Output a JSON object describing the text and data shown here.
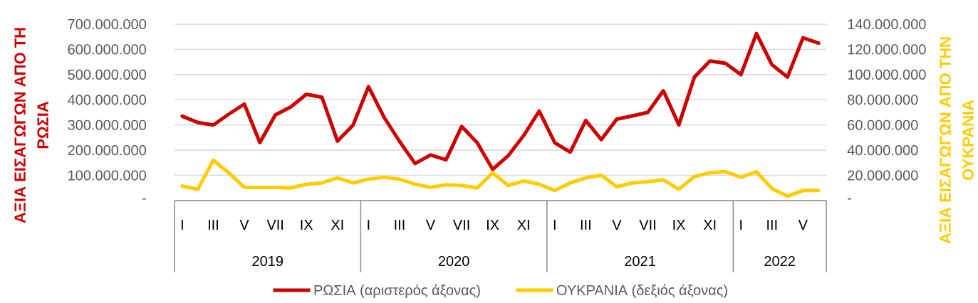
{
  "chart_data": {
    "type": "line",
    "categories": [
      "I",
      null,
      "III",
      null,
      "V",
      null,
      "VII",
      null,
      "IX",
      null,
      "XI",
      null,
      "I",
      null,
      "III",
      null,
      "V",
      null,
      "VII",
      null,
      "IX",
      null,
      "XI",
      null,
      "I",
      null,
      "III",
      null,
      "V",
      null,
      "VII",
      null,
      "IX",
      null,
      "XI",
      null,
      "I",
      null,
      "III",
      null,
      "V",
      null
    ],
    "annotations": [
      "2019",
      "2020",
      "2021",
      "2022"
    ],
    "ylabel": "ΑΞΙΑ ΕΙΣΑΓΩΓΩΝ ΑΠΟ ΤΗ ΡΩΣΙΑ",
    "y2label": "ΑΞΙΑ ΕΙΣΑΓΩΓΩΝ ΑΠΟ ΤΗΝ ΟΥΚΡΑΝΙΑ",
    "series": [
      {
        "name": "ΡΩΣΙΑ (αριστερός άξονας)",
        "color": "#cc0000",
        "values": [
          335000000,
          310000000,
          300000000,
          343000000,
          383000000,
          230000000,
          340000000,
          372000000,
          422000000,
          410000000,
          236000000,
          299000000,
          452000000,
          331000000,
          235000000,
          147000000,
          181000000,
          162000000,
          294000000,
          230000000,
          124000000,
          178000000,
          258000000,
          355000000,
          230000000,
          192000000,
          318000000,
          242000000,
          323000000,
          336000000,
          350000000,
          436000000,
          301000000,
          490000000,
          554000000,
          545000000,
          500000000,
          663000000,
          539000000,
          490000000,
          646000000,
          625000000
        ]
      },
      {
        "name": "ΟΥΚΡΑΝΙΑ (δεξιός άξονας)",
        "color": "#ffcc00",
        "axis": "y2",
        "values": [
          11500000,
          9000000,
          32000000,
          22000000,
          10500000,
          10500000,
          10500000,
          10000000,
          13000000,
          14000000,
          18000000,
          14000000,
          17000000,
          18500000,
          17000000,
          13000000,
          10500000,
          12500000,
          12000000,
          10000000,
          22000000,
          12000000,
          15500000,
          13000000,
          8000000,
          14000000,
          18000000,
          20000000,
          11000000,
          14000000,
          15000000,
          16500000,
          9000000,
          19000000,
          22000000,
          23000000,
          18500000,
          23000000,
          9500000,
          3500000,
          8000000,
          8000000
        ]
      }
    ],
    "ylim": [
      0,
      700000000
    ],
    "yticks": [
      {
        "value": 0,
        "label": "-"
      },
      {
        "value": 100000000,
        "label": "100.000.000"
      },
      {
        "value": 200000000,
        "label": "200.000.000"
      },
      {
        "value": 300000000,
        "label": "300.000.000"
      },
      {
        "value": 400000000,
        "label": "400.000.000"
      },
      {
        "value": 500000000,
        "label": "500.000.000"
      },
      {
        "value": 600000000,
        "label": "600.000.000"
      },
      {
        "value": 700000000,
        "label": "700.000.000"
      }
    ],
    "y2lim": [
      0,
      140000000
    ],
    "y2ticks": [
      {
        "value": 0,
        "label": "-"
      },
      {
        "value": 20000000,
        "label": "20.000.000"
      },
      {
        "value": 40000000,
        "label": "40.000.000"
      },
      {
        "value": 60000000,
        "label": "60.000.000"
      },
      {
        "value": 80000000,
        "label": "80.000.000"
      },
      {
        "value": 100000000,
        "label": "100.000.000"
      },
      {
        "value": 120000000,
        "label": "120.000.000"
      },
      {
        "value": 140000000,
        "label": "140.000.000"
      }
    ],
    "grid": "y",
    "legend": "bottom",
    "marker": "none",
    "line_style": "solid"
  }
}
